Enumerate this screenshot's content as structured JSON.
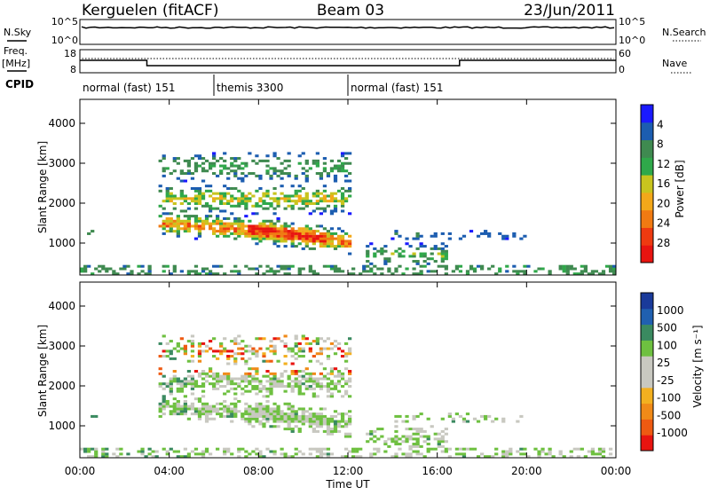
{
  "header": {
    "station": "Kerguelen (fitACF)",
    "beam": "Beam 03",
    "date": "23/Jun/2011"
  },
  "meta_panels": {
    "nsky_label": "N.Sky",
    "nsearch_label": "N.Search",
    "freq_label_line1": "Freq.",
    "freq_label_line2": "[MHz]",
    "nave_label": "Nave",
    "cpid_label": "CPID",
    "noise_ticks_left": [
      "10^5",
      "10^0"
    ],
    "noise_ticks_right": [
      "10^5",
      "10^0"
    ],
    "freq_ticks": [
      "18",
      "8"
    ],
    "nave_ticks": [
      "60",
      "0"
    ],
    "cpid_segments": [
      {
        "label": "normal (fast) 151",
        "start_hour": 0,
        "end_hour": 6
      },
      {
        "label": "themis 3300",
        "start_hour": 6,
        "end_hour": 12
      },
      {
        "label": "normal (fast) 151",
        "start_hour": 12,
        "end_hour": 24
      }
    ]
  },
  "chart_data": [
    {
      "type": "heatmap",
      "quantity": "Power",
      "ylabel": "Slant Range [km]",
      "yticks": [
        "1000",
        "2000",
        "3000",
        "4000"
      ],
      "ylim": [
        200,
        4600
      ],
      "xlim_hours": [
        0,
        24
      ],
      "colorbar_label": "Power [dB]",
      "colorbar_ticks": [
        "4",
        "8",
        "12",
        "16",
        "20",
        "24",
        "28"
      ],
      "colormap": [
        "#1a1aff",
        "#1c5db0",
        "#3f8a50",
        "#2fa84a",
        "#c8c41e",
        "#f3a81a",
        "#f07a12",
        "#ee3a10",
        "#e81410"
      ]
    },
    {
      "type": "heatmap",
      "quantity": "Velocity",
      "ylabel": "Slant Range [km]",
      "yticks": [
        "1000",
        "2000",
        "3000",
        "4000"
      ],
      "ylim": [
        200,
        4600
      ],
      "xlim_hours": [
        0,
        24
      ],
      "colorbar_label": "Velocity [m s⁻¹]",
      "colorbar_ticks": [
        "1000",
        "500",
        "100",
        "25",
        "-25",
        "-100",
        "-500",
        "-1000"
      ],
      "colormap": [
        "#1a3a9a",
        "#2060b0",
        "#3a8a60",
        "#6ec040",
        "#c8c8c0",
        "#c8c8c0",
        "#f3b020",
        "#f08a18",
        "#ee5a12",
        "#e81410"
      ]
    }
  ],
  "time_axis": {
    "xlabel": "Time UT",
    "ticks": [
      "00:00",
      "04:00",
      "08:00",
      "12:00",
      "16:00",
      "20:00",
      "00:00"
    ]
  }
}
